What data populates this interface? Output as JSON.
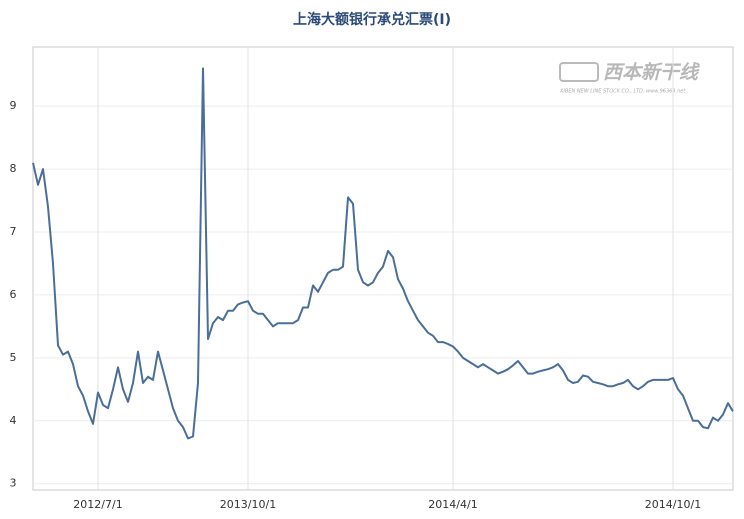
{
  "chart_data": {
    "type": "line",
    "title": "上海大额银行承兑汇票(Ⅰ)",
    "watermark": {
      "text": "西本新干线",
      "subtext": "XIBEN NEW LINE STOCK CO., LTD. www.96369.net"
    },
    "categories": [
      null,
      null,
      null,
      null,
      null,
      null,
      null,
      null,
      null,
      null,
      null,
      null,
      null,
      "2012/7/1",
      null,
      null,
      null,
      null,
      null,
      null,
      null,
      null,
      null,
      null,
      null,
      null,
      null,
      null,
      null,
      null,
      null,
      null,
      null,
      null,
      null,
      null,
      null,
      null,
      null,
      null,
      null,
      null,
      null,
      "2013/10/1",
      null,
      null,
      null,
      null,
      null,
      null,
      null,
      null,
      null,
      null,
      null,
      null,
      null,
      null,
      null,
      null,
      null,
      null,
      null,
      null,
      null,
      null,
      null,
      null,
      null,
      null,
      null,
      null,
      null,
      null,
      null,
      null,
      null,
      null,
      null,
      null,
      null,
      null,
      null,
      null,
      "2014/4/1",
      null,
      null,
      null,
      null,
      null,
      null,
      null,
      null,
      null,
      null,
      null,
      null,
      null,
      null,
      null,
      null,
      null,
      null,
      null,
      null,
      null,
      null,
      null,
      null,
      null,
      null,
      null,
      null,
      null,
      null,
      null,
      null,
      null,
      null,
      null,
      null,
      null,
      null,
      null,
      null,
      null,
      null,
      null,
      "2014/10/1",
      null,
      null,
      null,
      null,
      null,
      null,
      null,
      null,
      null,
      null,
      null,
      null
    ],
    "values": [
      8.1,
      7.75,
      8.0,
      7.4,
      6.5,
      5.2,
      5.05,
      5.1,
      4.9,
      4.55,
      4.4,
      4.15,
      3.95,
      4.45,
      4.25,
      4.2,
      4.5,
      4.85,
      4.5,
      4.3,
      4.6,
      5.1,
      4.6,
      4.7,
      4.65,
      5.1,
      4.8,
      4.5,
      4.2,
      4.0,
      3.9,
      3.72,
      3.75,
      4.6,
      9.6,
      5.3,
      5.55,
      5.65,
      5.6,
      5.75,
      5.75,
      5.85,
      5.88,
      5.9,
      5.75,
      5.7,
      5.7,
      5.6,
      5.5,
      5.55,
      5.55,
      5.55,
      5.55,
      5.6,
      5.8,
      5.8,
      6.15,
      6.05,
      6.2,
      6.35,
      6.4,
      6.4,
      6.45,
      7.55,
      7.45,
      6.4,
      6.2,
      6.15,
      6.2,
      6.35,
      6.45,
      6.7,
      6.6,
      6.25,
      6.1,
      5.9,
      5.75,
      5.6,
      5.5,
      5.4,
      5.35,
      5.25,
      5.25,
      5.22,
      5.18,
      5.1,
      5.0,
      4.95,
      4.9,
      4.85,
      4.9,
      4.85,
      4.8,
      4.75,
      4.78,
      4.82,
      4.88,
      4.95,
      4.85,
      4.75,
      4.75,
      4.78,
      4.8,
      4.82,
      4.85,
      4.9,
      4.8,
      4.65,
      4.6,
      4.62,
      4.72,
      4.7,
      4.62,
      4.6,
      4.58,
      4.55,
      4.55,
      4.58,
      4.6,
      4.65,
      4.55,
      4.5,
      4.55,
      4.62,
      4.65,
      4.65,
      4.65,
      4.65,
      4.68,
      4.5,
      4.4,
      4.2,
      4.0,
      4.0,
      3.9,
      3.88,
      4.05,
      4.0,
      4.1,
      4.28,
      4.15
    ],
    "color": "#4a6e98",
    "ylim": [
      2.9,
      9.94
    ],
    "yticks": [
      3,
      4,
      5,
      6,
      7,
      8,
      9
    ],
    "grid": true
  }
}
